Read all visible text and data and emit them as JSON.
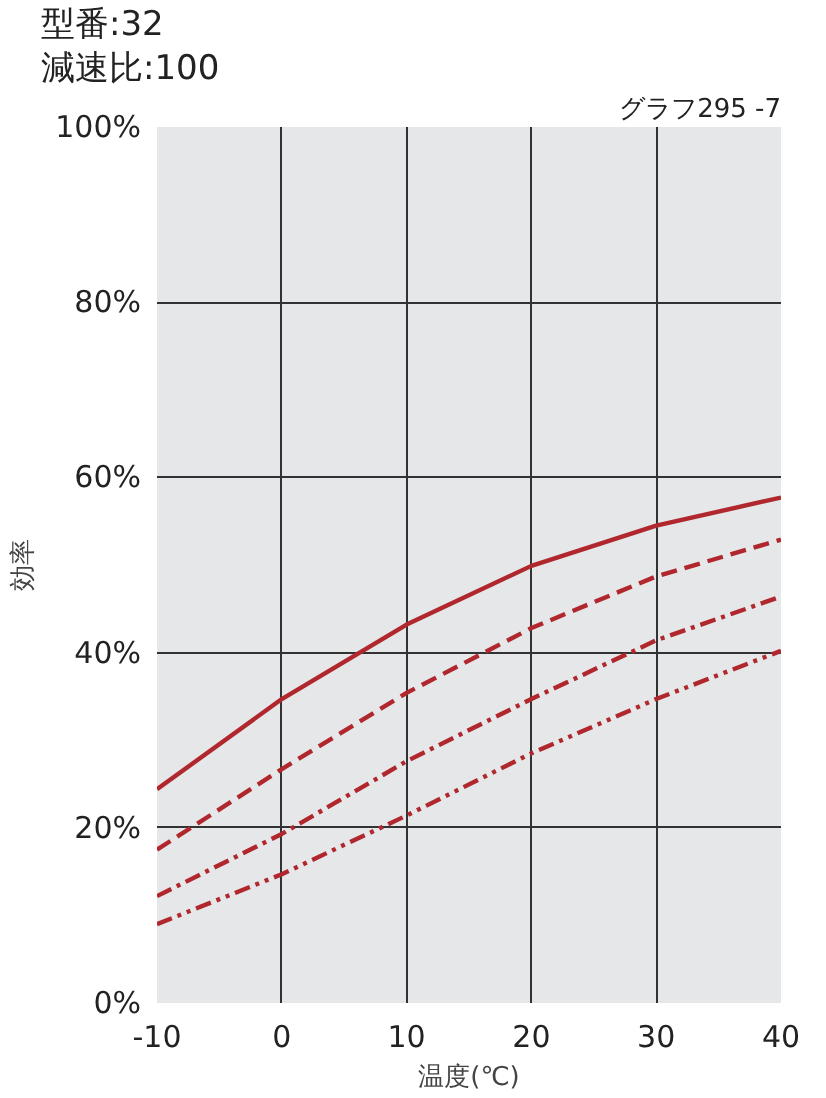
{
  "chart_data": {
    "type": "line",
    "xlabel": "温度(℃)",
    "ylabel": "効率",
    "annotations": [
      "型番:32",
      "減速比:100",
      "グラフ295 -7"
    ],
    "x": [
      -10,
      0,
      10,
      20,
      30,
      40
    ],
    "series": [
      {
        "color": "#b0282e",
        "line_style": "solid",
        "values": [
          24.4,
          34.7,
          43.2,
          49.9,
          54.5,
          57.7
        ]
      },
      {
        "color": "#b0282e",
        "line_style": "dashed",
        "values": [
          17.5,
          26.7,
          35.4,
          42.8,
          48.7,
          52.9
        ]
      },
      {
        "color": "#b0282e",
        "line_style": "dashdot",
        "values": [
          12.2,
          19.3,
          27.6,
          34.7,
          41.4,
          46.4
        ]
      },
      {
        "color": "#b0282e",
        "line_style": "dashdotdot",
        "values": [
          9.0,
          14.7,
          21.4,
          28.5,
          34.7,
          40.2
        ]
      }
    ],
    "xlim": [
      -10,
      40
    ],
    "ylim": [
      0,
      100
    ],
    "xticks": [
      -10,
      0,
      10,
      20,
      30,
      40
    ],
    "yticks": [
      {
        "value": 0,
        "label": "0%"
      },
      {
        "value": 20,
        "label": "20%"
      },
      {
        "value": 40,
        "label": "40%"
      },
      {
        "value": 60,
        "label": "60%"
      },
      {
        "value": 80,
        "label": "80%"
      },
      {
        "value": 100,
        "label": "100%"
      }
    ],
    "grid": true,
    "marker": "none"
  }
}
